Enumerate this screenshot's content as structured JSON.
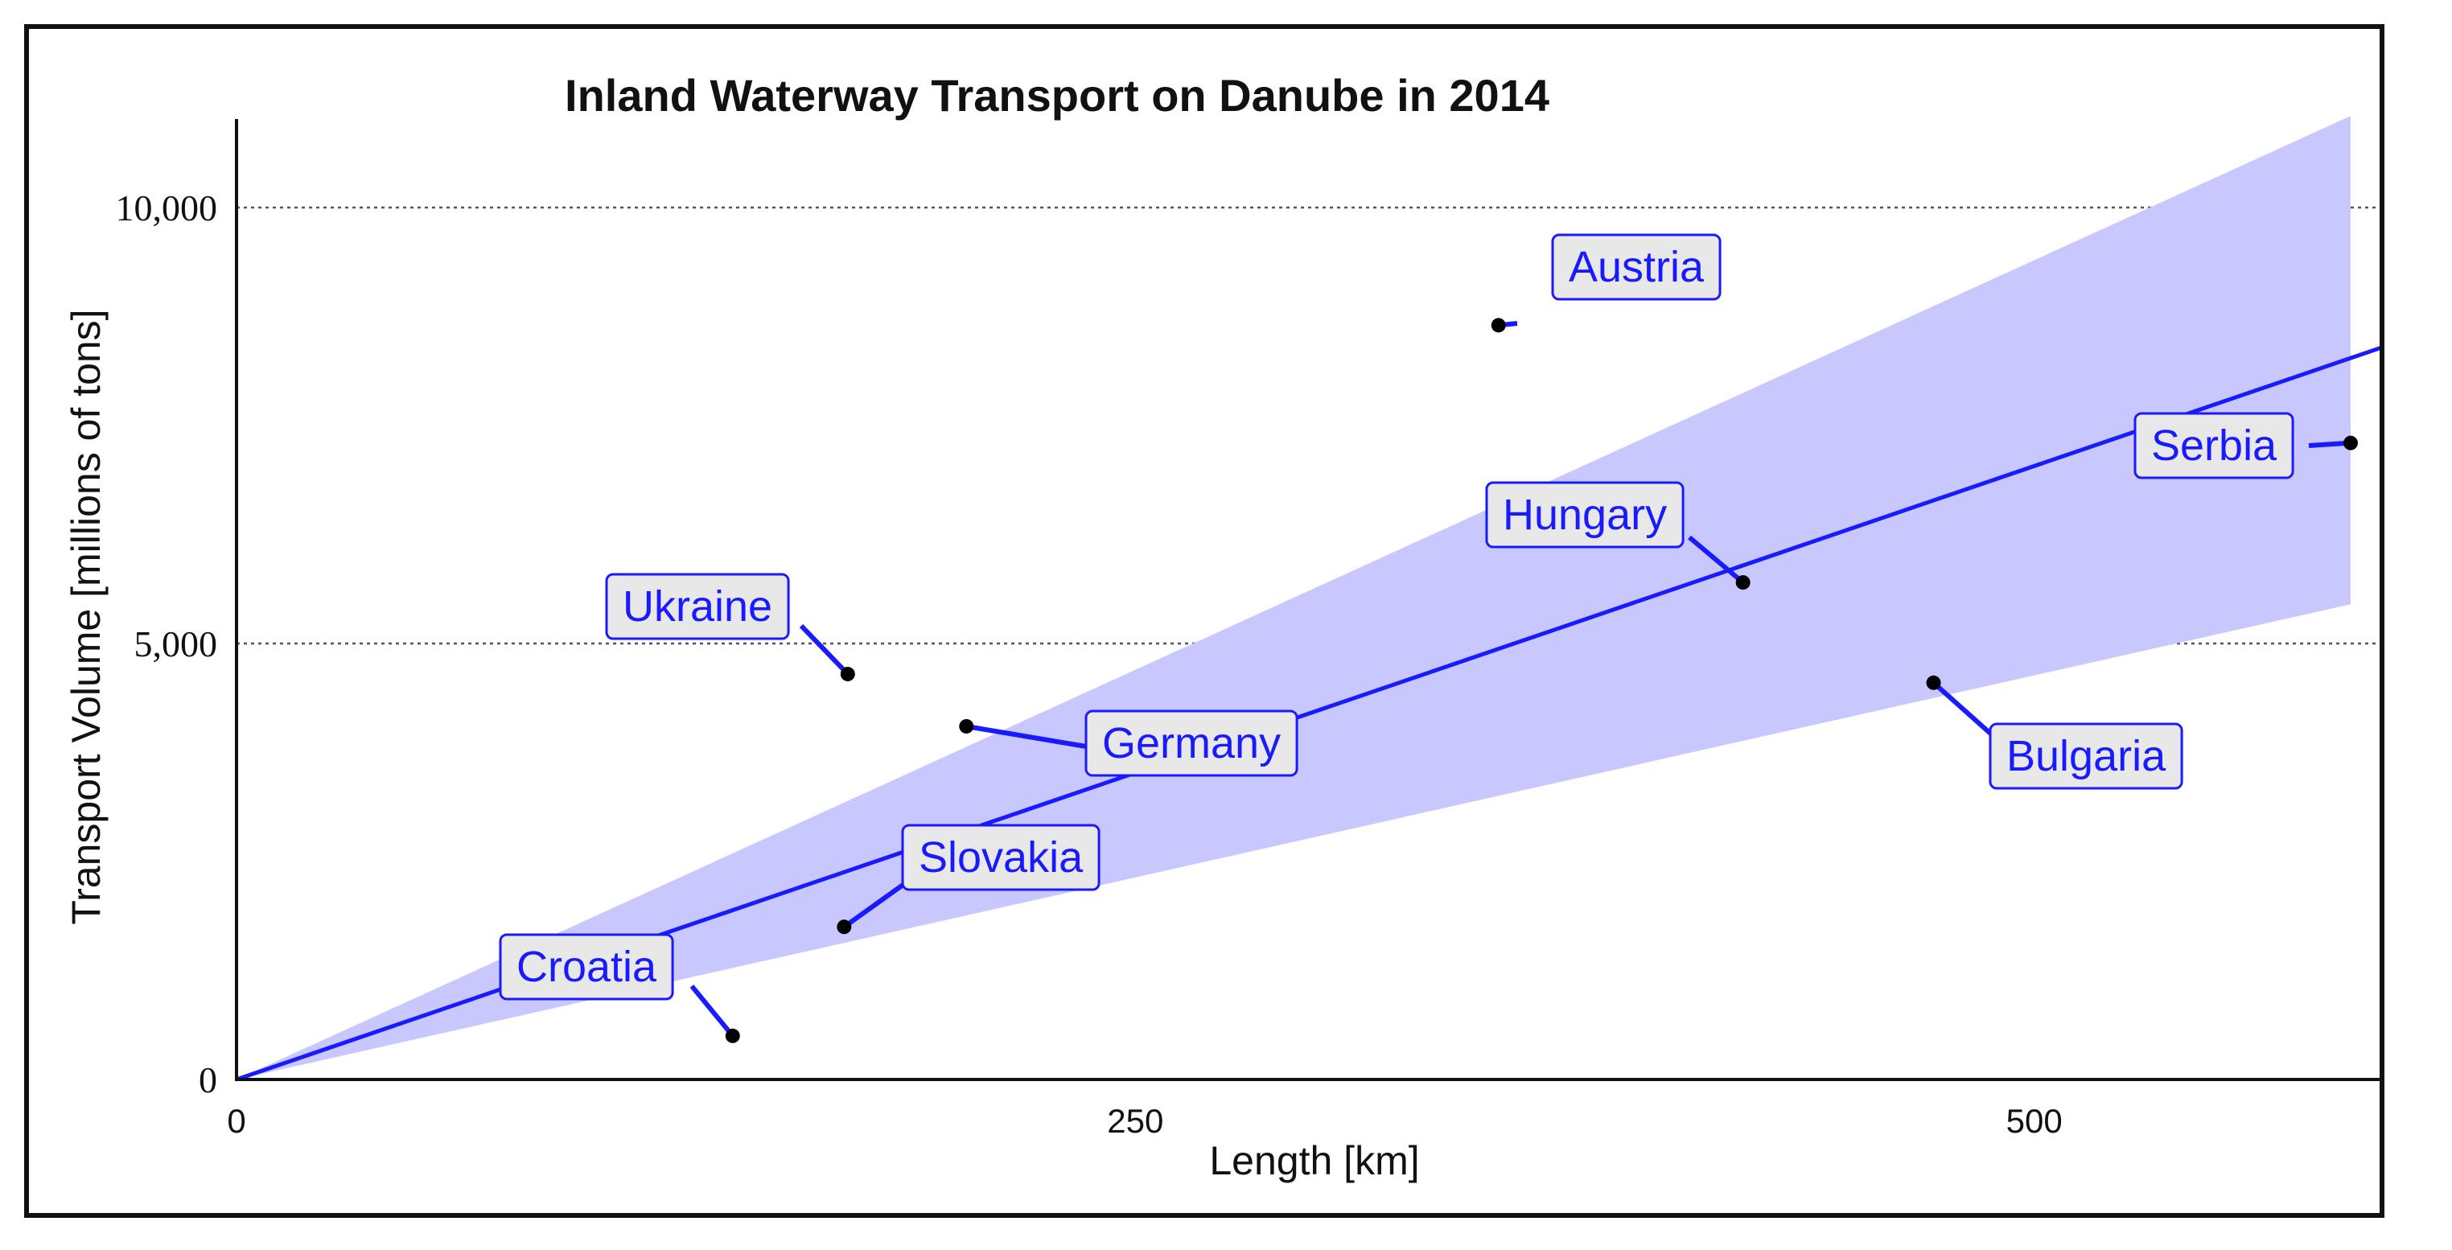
{
  "colors": {
    "band": "#c8c8ff",
    "trend": "#1a1aff",
    "points": "#000000",
    "gridline": "#555555",
    "label_text": "#1a1aff",
    "label_fill": "#e8e8e8"
  },
  "chart_data": {
    "type": "scatter",
    "title": "Inland Waterway Transport on Danube in 2014",
    "xlabel": "Length [km]",
    "ylabel": "Transport Volume [millions of tons]",
    "xlim": [
      0,
      597
    ],
    "ylim": [
      0,
      11000
    ],
    "x_ticks": [
      0,
      250,
      500
    ],
    "x_tick_labels": [
      "0",
      "250",
      "500"
    ],
    "y_ticks": [
      0,
      5000,
      10000
    ],
    "y_tick_labels": [
      "0",
      "5,000",
      "10,000"
    ],
    "grid": "horizontal dotted at 5,000 and 10,000",
    "points": [
      {
        "name": "Austria",
        "x": 351,
        "y": 8650
      },
      {
        "name": "Serbia",
        "x": 588,
        "y": 7300
      },
      {
        "name": "Hungary",
        "x": 419,
        "y": 5700
      },
      {
        "name": "Ukraine",
        "x": 170,
        "y": 4650
      },
      {
        "name": "Bulgaria",
        "x": 472,
        "y": 4550
      },
      {
        "name": "Germany",
        "x": 203,
        "y": 4050
      },
      {
        "name": "Slovakia",
        "x": 169,
        "y": 1750
      },
      {
        "name": "Croatia",
        "x": 138,
        "y": 500
      }
    ],
    "trend_line": {
      "x": [
        0,
        597
      ],
      "y": [
        0,
        8400
      ]
    },
    "confidence_band": {
      "x": [
        0,
        588
      ],
      "upper": [
        0,
        11050
      ],
      "lower": [
        0,
        5450
      ]
    }
  }
}
